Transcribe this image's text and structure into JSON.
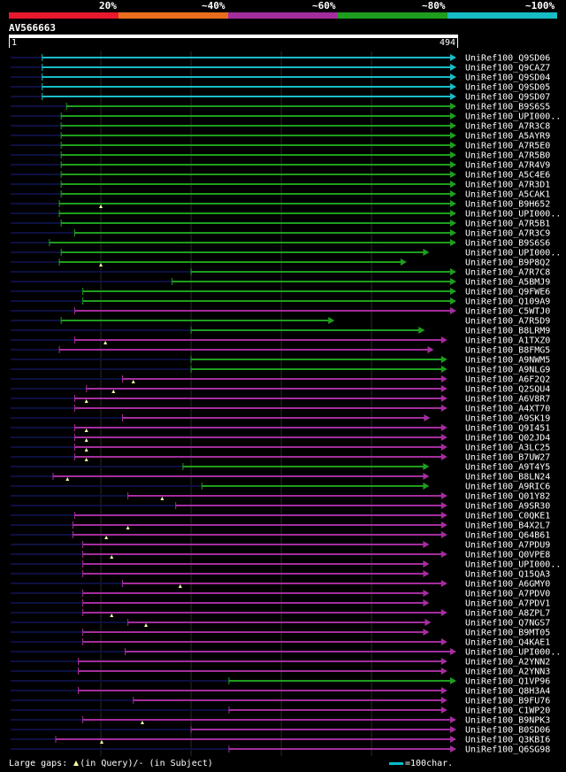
{
  "legend": {
    "labels": [
      "20%",
      "~40%",
      "~60%",
      "~80%",
      "~100%"
    ],
    "colors": [
      "#e8192c",
      "#e86e1e",
      "#a42d9e",
      "#1e9e1e",
      "#18bcc6"
    ]
  },
  "query": {
    "id": "AV566663",
    "start": "1",
    "end": "494",
    "length": 494
  },
  "colors": {
    "cyan": "#18bcc6",
    "green": "#1e9e1e",
    "purple": "#a42d9e",
    "grid": "#2a2a2a",
    "dash": "#0c1040",
    "gap_marker": "#ffffaa"
  },
  "chart_data": {
    "type": "alignment",
    "query_length": 494,
    "hits": [
      {
        "name": "UniRef100_Q9SD06",
        "start": 35,
        "end": 494,
        "color": "cyan"
      },
      {
        "name": "UniRef100_Q9CAZ7",
        "start": 35,
        "end": 494,
        "color": "cyan"
      },
      {
        "name": "UniRef100_Q9SD04",
        "start": 35,
        "end": 494,
        "color": "cyan"
      },
      {
        "name": "UniRef100_Q9SD05",
        "start": 35,
        "end": 494,
        "color": "cyan"
      },
      {
        "name": "UniRef100_Q9SD07",
        "start": 35,
        "end": 494,
        "color": "cyan"
      },
      {
        "name": "UniRef100_B9S6S5",
        "start": 62,
        "end": 494,
        "color": "green"
      },
      {
        "name": "UniRef100_UPI000..",
        "start": 56,
        "end": 494,
        "color": "green"
      },
      {
        "name": "UniRef100_A7R3C8",
        "start": 56,
        "end": 494,
        "color": "green"
      },
      {
        "name": "UniRef100_A5AYR9",
        "start": 56,
        "end": 494,
        "color": "green"
      },
      {
        "name": "UniRef100_A7R5E0",
        "start": 56,
        "end": 494,
        "color": "green"
      },
      {
        "name": "UniRef100_A7R5B0",
        "start": 56,
        "end": 494,
        "color": "green"
      },
      {
        "name": "UniRef100_A7R4V9",
        "start": 56,
        "end": 494,
        "color": "green"
      },
      {
        "name": "UniRef100_A5C4E6",
        "start": 56,
        "end": 494,
        "color": "green"
      },
      {
        "name": "UniRef100_A7R3D1",
        "start": 56,
        "end": 494,
        "color": "green"
      },
      {
        "name": "UniRef100_A5CAK1",
        "start": 56,
        "end": 494,
        "color": "green"
      },
      {
        "name": "UniRef100_B9H652",
        "start": 54,
        "end": 494,
        "color": "green",
        "gap": 100
      },
      {
        "name": "UniRef100_UPI000..",
        "start": 54,
        "end": 494,
        "color": "green"
      },
      {
        "name": "UniRef100_A7R5B1",
        "start": 56,
        "end": 494,
        "color": "green"
      },
      {
        "name": "UniRef100_A7R3C9",
        "start": 71,
        "end": 494,
        "color": "green"
      },
      {
        "name": "UniRef100_B9S6S6",
        "start": 43,
        "end": 494,
        "color": "green"
      },
      {
        "name": "UniRef100_UPI000..",
        "start": 56,
        "end": 464,
        "color": "green"
      },
      {
        "name": "UniRef100_B9P8Q2",
        "start": 54,
        "end": 439,
        "color": "green",
        "gap": 100
      },
      {
        "name": "UniRef100_A7R7C8",
        "start": 200,
        "end": 494,
        "color": "green"
      },
      {
        "name": "UniRef100_A5BMJ9",
        "start": 179,
        "end": 494,
        "color": "green"
      },
      {
        "name": "UniRef100_Q9FWE6",
        "start": 80,
        "end": 494,
        "color": "green"
      },
      {
        "name": "UniRef100_Q109A9",
        "start": 80,
        "end": 494,
        "color": "green"
      },
      {
        "name": "UniRef100_C5WTJ0",
        "start": 71,
        "end": 494,
        "color": "purple"
      },
      {
        "name": "UniRef100_A7R5D9",
        "start": 56,
        "end": 359,
        "color": "green"
      },
      {
        "name": "UniRef100_B8LRM9",
        "start": 200,
        "end": 459,
        "color": "green"
      },
      {
        "name": "UniRef100_A1TXZ0",
        "start": 71,
        "end": 484,
        "color": "purple",
        "gap": 105
      },
      {
        "name": "UniRef100_B8FMG5",
        "start": 54,
        "end": 469,
        "color": "purple"
      },
      {
        "name": "UniRef100_A9NWM5",
        "start": 200,
        "end": 484,
        "color": "green"
      },
      {
        "name": "UniRef100_A9NLG9",
        "start": 200,
        "end": 484,
        "color": "green"
      },
      {
        "name": "UniRef100_A6F2Q2",
        "start": 124,
        "end": 484,
        "color": "purple",
        "gap": 136
      },
      {
        "name": "UniRef100_Q2SQU4",
        "start": 84,
        "end": 484,
        "color": "purple",
        "gap": 114
      },
      {
        "name": "UniRef100_A6V8R7",
        "start": 71,
        "end": 484,
        "color": "purple",
        "gap": 84
      },
      {
        "name": "UniRef100_A4XT70",
        "start": 71,
        "end": 484,
        "color": "purple"
      },
      {
        "name": "UniRef100_A9SK19",
        "start": 124,
        "end": 465,
        "color": "purple"
      },
      {
        "name": "UniRef100_Q9I451",
        "start": 71,
        "end": 484,
        "color": "purple",
        "gap": 84
      },
      {
        "name": "UniRef100_Q02JD4",
        "start": 71,
        "end": 484,
        "color": "purple",
        "gap": 84
      },
      {
        "name": "UniRef100_A3LC25",
        "start": 71,
        "end": 484,
        "color": "purple",
        "gap": 84
      },
      {
        "name": "UniRef100_B7UW27",
        "start": 71,
        "end": 484,
        "color": "purple",
        "gap": 84
      },
      {
        "name": "UniRef100_A9T4Y5",
        "start": 191,
        "end": 464,
        "color": "green"
      },
      {
        "name": "UniRef100_B8LN24",
        "start": 47,
        "end": 464,
        "color": "purple",
        "gap": 63
      },
      {
        "name": "UniRef100_A9RIC6",
        "start": 212,
        "end": 464,
        "color": "green"
      },
      {
        "name": "UniRef100_Q01Y82",
        "start": 130,
        "end": 484,
        "color": "purple",
        "gap": 168
      },
      {
        "name": "UniRef100_A9SR30",
        "start": 183,
        "end": 484,
        "color": "purple"
      },
      {
        "name": "UniRef100_C0QKE1",
        "start": 71,
        "end": 484,
        "color": "purple"
      },
      {
        "name": "UniRef100_B4X2L7",
        "start": 69,
        "end": 484,
        "color": "purple",
        "gap": 130
      },
      {
        "name": "UniRef100_Q64B61",
        "start": 69,
        "end": 484,
        "color": "purple",
        "gap": 106
      },
      {
        "name": "UniRef100_A7PDU9",
        "start": 80,
        "end": 464,
        "color": "purple"
      },
      {
        "name": "UniRef100_Q0VPE8",
        "start": 80,
        "end": 484,
        "color": "purple",
        "gap": 112
      },
      {
        "name": "UniRef100_UPI000..",
        "start": 80,
        "end": 464,
        "color": "purple"
      },
      {
        "name": "UniRef100_Q15QA3",
        "start": 80,
        "end": 464,
        "color": "purple"
      },
      {
        "name": "UniRef100_A6GMY0",
        "start": 124,
        "end": 484,
        "color": "purple",
        "gap": 188
      },
      {
        "name": "UniRef100_A7PDV0",
        "start": 80,
        "end": 464,
        "color": "purple"
      },
      {
        "name": "UniRef100_A7PDV1",
        "start": 80,
        "end": 464,
        "color": "purple"
      },
      {
        "name": "UniRef100_A8ZPL7",
        "start": 80,
        "end": 484,
        "color": "purple",
        "gap": 112
      },
      {
        "name": "UniRef100_Q7NGS7",
        "start": 130,
        "end": 466,
        "color": "purple",
        "gap": 150
      },
      {
        "name": "UniRef100_B9MT05",
        "start": 80,
        "end": 464,
        "color": "purple"
      },
      {
        "name": "UniRef100_Q4KAE1",
        "start": 80,
        "end": 484,
        "color": "purple"
      },
      {
        "name": "UniRef100_UPI000..",
        "start": 127,
        "end": 494,
        "color": "purple"
      },
      {
        "name": "UniRef100_A2YNN2",
        "start": 75,
        "end": 484,
        "color": "purple"
      },
      {
        "name": "UniRef100_A2YNN3",
        "start": 75,
        "end": 484,
        "color": "purple"
      },
      {
        "name": "UniRef100_Q1VP96",
        "start": 242,
        "end": 494,
        "color": "green"
      },
      {
        "name": "UniRef100_Q8H3A4",
        "start": 75,
        "end": 484,
        "color": "purple"
      },
      {
        "name": "UniRef100_B9FU76",
        "start": 136,
        "end": 484,
        "color": "purple"
      },
      {
        "name": "UniRef100_C1WP20",
        "start": 242,
        "end": 484,
        "color": "purple"
      },
      {
        "name": "UniRef100_B9NPK3",
        "start": 80,
        "end": 494,
        "color": "purple",
        "gap": 146
      },
      {
        "name": "UniRef100_B0SD06",
        "start": 200,
        "end": 494,
        "color": "purple"
      },
      {
        "name": "UniRef100_Q3KBI6",
        "start": 50,
        "end": 494,
        "color": "purple",
        "gap": 101
      },
      {
        "name": "UniRef100_Q6SG98",
        "start": 242,
        "end": 494,
        "color": "purple"
      }
    ]
  },
  "footer": {
    "gaps_prefix": "Large gaps:",
    "gaps_query": "(in Query)/",
    "gaps_subject": "- (in Subject)",
    "scale_text": "=100char."
  }
}
